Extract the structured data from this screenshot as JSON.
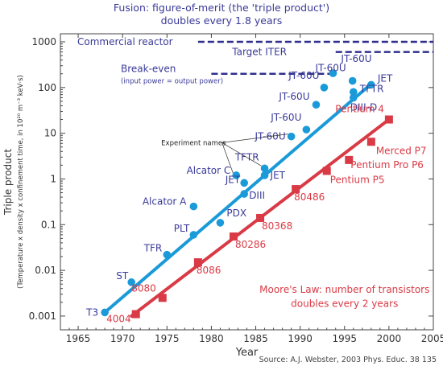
{
  "chart_data": {
    "type": "scatter",
    "title": [
      "Fusion: figure-of-merit (the 'triple product')",
      "doubles every 1.8 years"
    ],
    "xlabel": "Year",
    "ylabel": "Triple product",
    "ylabel_sub": "(Temperature x density x confinement time, in 10²⁰ m⁻³ keV·s)",
    "xlim": [
      1963,
      2005
    ],
    "ylim": [
      0.0005,
      1500
    ],
    "yscale": "log",
    "x_ticks": [
      1965,
      1970,
      1975,
      1980,
      1985,
      1990,
      1995,
      2000,
      2005
    ],
    "y_ticks": [
      {
        "value": 0.001,
        "label": "0.001"
      },
      {
        "value": 0.01,
        "label": "0.01"
      },
      {
        "value": 0.1,
        "label": "0.1"
      },
      {
        "value": 1,
        "label": "1"
      },
      {
        "value": 10,
        "label": "10"
      },
      {
        "value": 100,
        "label": "100"
      },
      {
        "value": 1000,
        "label": "1000"
      }
    ],
    "series": [
      {
        "marker": "circle",
        "color": "#1a9ad8",
        "trend": [
          [
            1968,
            0.0012
          ],
          [
            1998,
            120
          ]
        ],
        "points": [
          {
            "x": 1968,
            "y": 0.0012,
            "label": "T3"
          },
          {
            "x": 1971,
            "y": 0.0055,
            "label": "ST"
          },
          {
            "x": 1975,
            "y": 0.022,
            "label": "TFR"
          },
          {
            "x": 1978,
            "y": 0.06,
            "label": "PLT"
          },
          {
            "x": 1978,
            "y": 0.25,
            "label": "Alcator A"
          },
          {
            "x": 1981,
            "y": 0.11,
            "label": "PDX"
          },
          {
            "x": 1982.8,
            "y": 1.2,
            "label": "Alcator C"
          },
          {
            "x": 1983.7,
            "y": 0.82,
            "label": "JET"
          },
          {
            "x": 1983.7,
            "y": 0.47,
            "label": "DIII"
          },
          {
            "x": 1986,
            "y": 1.7,
            "label": "TFTR"
          },
          {
            "x": 1986,
            "y": 1.2,
            "label": "JET"
          },
          {
            "x": 1989,
            "y": 8.5,
            "label": "JT-60U"
          },
          {
            "x": 1990.7,
            "y": 12,
            "label": "JT-60U"
          },
          {
            "x": 1991.8,
            "y": 42,
            "label": "JT-60U"
          },
          {
            "x": 1992.7,
            "y": 100,
            "label": "JT-60U"
          },
          {
            "x": 1993.7,
            "y": 205,
            "label": "JT-60U"
          },
          {
            "x": 1995.9,
            "y": 140,
            "label": "JT-60U"
          },
          {
            "x": 1998,
            "y": 115,
            "label": "JET"
          },
          {
            "x": 1996,
            "y": 80,
            "label": "TFTR"
          },
          {
            "x": 1996,
            "y": 60,
            "label": "DIII-D"
          }
        ]
      },
      {
        "marker": "square",
        "color": "#d93a45",
        "trend": [
          [
            1971,
            0.001
          ],
          [
            2000,
            20
          ]
        ],
        "points": [
          {
            "x": 1971.5,
            "y": 0.0011,
            "label": "4004"
          },
          {
            "x": 1974.5,
            "y": 0.0025,
            "label": "8080"
          },
          {
            "x": 1978.5,
            "y": 0.015,
            "label": "8086"
          },
          {
            "x": 1982.5,
            "y": 0.055,
            "label": "80286"
          },
          {
            "x": 1985.5,
            "y": 0.14,
            "label": "80368"
          },
          {
            "x": 1989.5,
            "y": 0.6,
            "label": "80486"
          },
          {
            "x": 1993,
            "y": 1.5,
            "label": "Pentium P5"
          },
          {
            "x": 1995.5,
            "y": 2.6,
            "label": "Pentium Pro P6"
          },
          {
            "x": 1998,
            "y": 6.5,
            "label": "Merced P7"
          },
          {
            "x": 2000,
            "y": 20,
            "label": "Pentium 4"
          }
        ]
      }
    ],
    "reference_lines": [
      {
        "label": "Commercial reactor",
        "y": 1000,
        "x_start": 1978.5,
        "x_end": 2005
      },
      {
        "label": "Target ITER",
        "y": 600,
        "x_start": 1994,
        "x_end": 2005
      },
      {
        "label": "Break-even",
        "sublabel": "(input power = output power)",
        "y": 200,
        "x_start": 1980,
        "x_end": 1993.3
      }
    ],
    "annotations": [
      {
        "text": "Experiment names",
        "x": 1978,
        "y": 5.5
      },
      {
        "text": "Moore's Law: number of transistors",
        "x": 1995,
        "y": 0.0032
      },
      {
        "text": "doubles every 2 years",
        "x": 1995,
        "y": 0.0016
      }
    ],
    "source": "Source: A.J. Webster, 2003 Phys. Educ. 38 135"
  }
}
